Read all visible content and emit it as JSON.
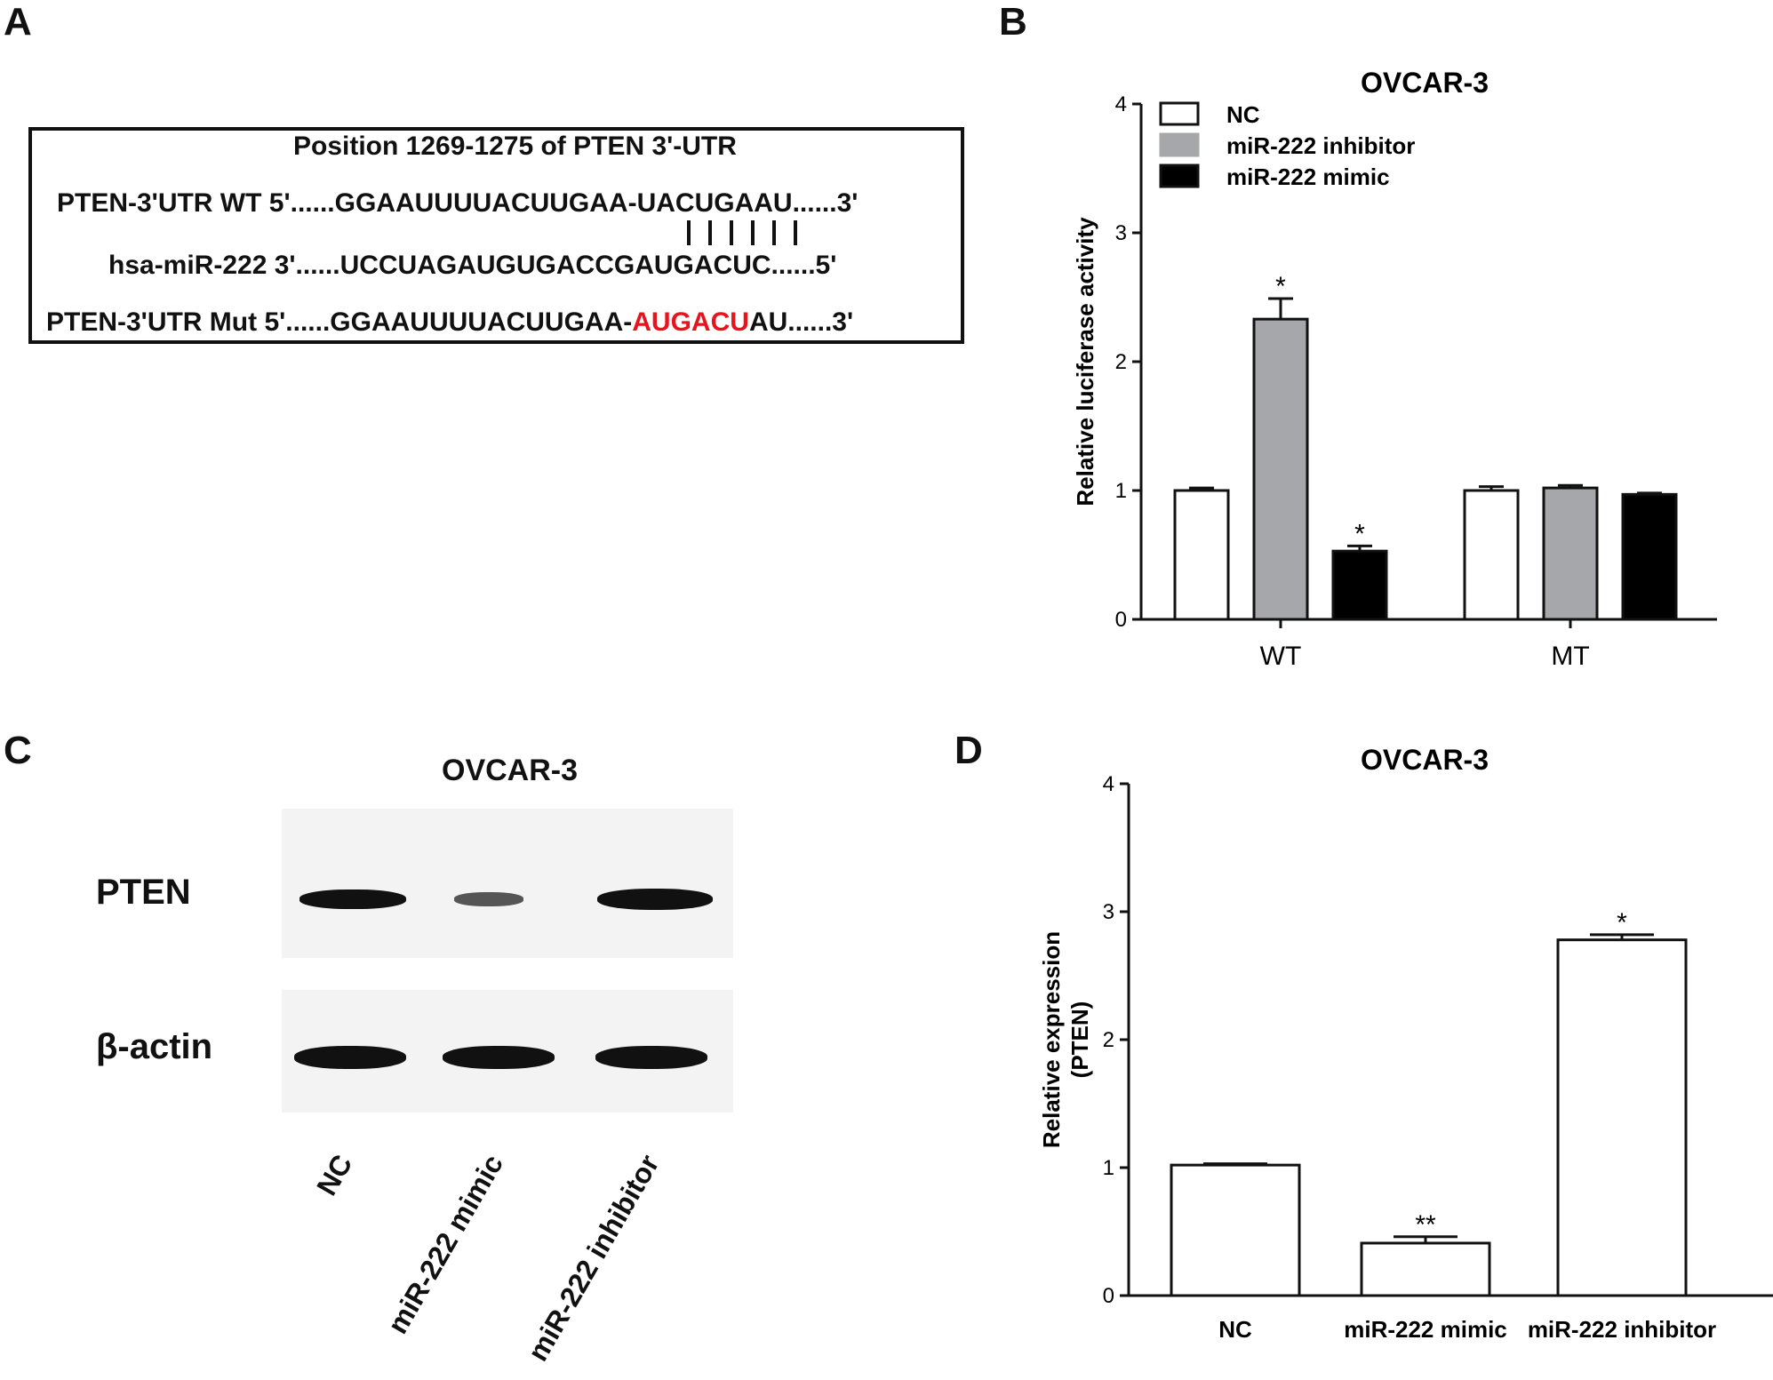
{
  "panels": {
    "a": "A",
    "b": "B",
    "c": "C",
    "d": "D"
  },
  "panel_a": {
    "title": "Position 1269-1275 of PTEN 3'-UTR",
    "wt_prefix": "PTEN-3'UTR WT 5'......GGAAUUUUACUUGAA-UACUGAAU......3'",
    "mir": "hsa-miR-222 3'......UCCUAGAUGUGACCGAUGACUC......5'",
    "mut_prefix": "PTEN-3'UTR Mut 5'......GGAAUUUUACUUGAA-",
    "mut_red": "AUGACU",
    "mut_suffix": "AU......3'",
    "highlight_color": "#e8141d"
  },
  "panel_c": {
    "title": "OVCAR-3",
    "rows": [
      "PTEN",
      "β-actin"
    ],
    "lanes": [
      "NC",
      "miR-222 mimic",
      "miR-222 inhibitor"
    ],
    "pten_intensity": [
      0.85,
      0.45,
      1.0
    ],
    "actin_intensity": [
      1.0,
      1.0,
      1.0
    ]
  },
  "chart_data": [
    {
      "type": "bar",
      "title": "OVCAR-3",
      "ylabel": "Relative luciferase activity",
      "categories": [
        "WT",
        "MT"
      ],
      "ylim": [
        0,
        4
      ],
      "yticks": [
        "0",
        "1",
        "2",
        "3",
        "4"
      ],
      "legend_position": "top-left",
      "series": [
        {
          "name": "NC",
          "values": [
            1.0,
            1.0
          ],
          "errors": [
            0.02,
            0.03
          ],
          "fill": "#ffffff",
          "annotations": [
            "",
            ""
          ]
        },
        {
          "name": "miR-222 inhibitor",
          "values": [
            2.33,
            1.02
          ],
          "errors": [
            0.16,
            0.02
          ],
          "fill": "#a6a7ab",
          "annotations": [
            "*",
            ""
          ]
        },
        {
          "name": "miR-222 mimic",
          "values": [
            0.53,
            0.97
          ],
          "errors": [
            0.04,
            0.01
          ],
          "fill": "#000000",
          "annotations": [
            "*",
            ""
          ]
        }
      ]
    },
    {
      "type": "bar",
      "title": "OVCAR-3",
      "ylabel": "Relative expression\n(PTEN)",
      "categories": [
        "NC",
        "miR-222 mimic",
        "miR-222 inhibitor"
      ],
      "ylim": [
        0,
        4
      ],
      "yticks": [
        "0",
        "1",
        "2",
        "3",
        "4"
      ],
      "values": [
        1.02,
        0.41,
        2.78
      ],
      "errors": [
        0.01,
        0.05,
        0.04
      ],
      "annotations": [
        "",
        "**",
        "*"
      ]
    }
  ]
}
